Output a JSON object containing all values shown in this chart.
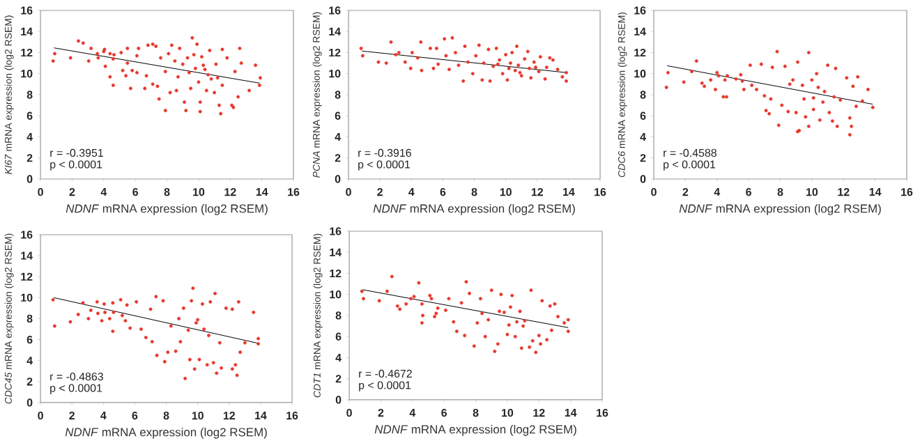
{
  "chart_data": [
    {
      "type": "scatter",
      "xlabel": "*NDNF* mRNA expression (log2 RSEM)",
      "ylabel": "*KI67* mRNA expression (log2 RSEM)",
      "xlim": [
        0,
        16
      ],
      "ylim": [
        0,
        16
      ],
      "xticks": [
        0,
        2,
        4,
        6,
        8,
        10,
        12,
        14,
        16
      ],
      "yticks": [
        0,
        2,
        4,
        6,
        8,
        10,
        12,
        14,
        16
      ],
      "annotations": [
        "r = -0.3951",
        "p < 0.0001"
      ],
      "series": [
        {
          "color": "#e8392f",
          "marker": "circle",
          "x": [
            0.8,
            0.9,
            1.9,
            2.4,
            2.7,
            3.05,
            3.2,
            3.6,
            3.65,
            4.0,
            4.05,
            4.1,
            4.4,
            4.4,
            4.6,
            4.6,
            4.65,
            5.1,
            5.2,
            5.4,
            5.5,
            5.5,
            5.7,
            5.8,
            6.1,
            6.2,
            6.1,
            6.6,
            6.7,
            6.8,
            7.1,
            7.1,
            7.3,
            7.4,
            7.5,
            7.6,
            7.9,
            7.9,
            8.1,
            8.2,
            8.3,
            8.5,
            8.6,
            8.8,
            9.0,
            9.1,
            9.2,
            9.3,
            9.5,
            9.6,
            9.7,
            9.8,
            9.9,
            10.0,
            10.1,
            10.1,
            10.2,
            10.4,
            10.5,
            10.7,
            10.8,
            11.0,
            11.1,
            11.3,
            11.4,
            11.5,
            11.5,
            11.8,
            12.1,
            12.2,
            12.3,
            12.5,
            12.6,
            12.7,
            13.2,
            13.6,
            13.85,
            13.9,
            10.3,
            10.6,
            11.2,
            9.4,
            8.7
          ],
          "values": [
            11.2,
            11.9,
            11.5,
            13.1,
            12.9,
            11.2,
            12.4,
            11.9,
            11.5,
            12.1,
            12.3,
            10.7,
            9.7,
            11.9,
            11.4,
            8.9,
            11.8,
            12.0,
            10.3,
            9.8,
            12.4,
            11.0,
            8.6,
            10.3,
            11.7,
            12.4,
            10.1,
            8.6,
            9.8,
            12.7,
            12.8,
            9.0,
            12.6,
            8.8,
            7.6,
            11.5,
            6.5,
            10.2,
            11.9,
            8.2,
            12.7,
            11.2,
            8.4,
            12.4,
            10.9,
            7.3,
            6.5,
            11.5,
            8.6,
            13.4,
            11.8,
            10.5,
            12.8,
            9.2,
            6.4,
            7.3,
            11.6,
            10.4,
            8.4,
            12.2,
            9.5,
            8.2,
            10.9,
            7.0,
            6.2,
            12.3,
            8.9,
            11.5,
            7.0,
            6.8,
            10.2,
            7.8,
            12.4,
            11.0,
            8.4,
            10.8,
            8.9,
            9.6,
            10.8,
            9.9,
            9.6,
            10.1,
            9.7
          ]
        },
        {
          "type": "line",
          "color": "#000000",
          "marker": "none",
          "x": [
            0.85,
            13.85
          ],
          "values": [
            12.45,
            9.1
          ]
        }
      ]
    },
    {
      "type": "scatter",
      "xlabel": "*NDNF* mRNA expression (log2 RSEM)",
      "ylabel": "*PCNA* mRNA expression (log2 RSEM)",
      "xlim": [
        0,
        16
      ],
      "ylim": [
        0,
        16
      ],
      "xticks": [
        0,
        2,
        4,
        6,
        8,
        10,
        12,
        14,
        16
      ],
      "yticks": [
        0,
        2,
        4,
        6,
        8,
        10,
        12,
        14,
        16
      ],
      "annotations": [
        "r = -0.3916",
        "p < 0.0001"
      ],
      "series": [
        {
          "color": "#e8392f",
          "marker": "circle",
          "x": [
            0.8,
            0.9,
            1.9,
            2.4,
            2.7,
            3.0,
            3.2,
            3.6,
            3.95,
            4.05,
            4.4,
            4.6,
            4.65,
            5.2,
            5.4,
            5.6,
            5.7,
            6.1,
            6.2,
            6.4,
            6.6,
            6.8,
            7.0,
            7.3,
            7.4,
            7.6,
            7.9,
            8.1,
            8.3,
            8.5,
            8.9,
            9.0,
            9.2,
            9.4,
            9.6,
            9.8,
            10.0,
            10.1,
            10.3,
            10.4,
            10.6,
            10.7,
            10.8,
            11.0,
            11.2,
            11.4,
            11.5,
            11.6,
            11.8,
            12.1,
            12.2,
            12.5,
            12.6,
            12.8,
            13.0,
            13.3,
            13.6,
            13.85,
            13.85,
            9.5,
            10.2,
            10.9,
            11.9,
            8.6
          ],
          "values": [
            12.4,
            11.7,
            11.1,
            11.0,
            13.0,
            11.8,
            12.0,
            11.1,
            10.5,
            12.0,
            11.5,
            13.0,
            10.3,
            12.4,
            10.5,
            12.4,
            10.9,
            13.3,
            11.7,
            10.4,
            13.4,
            12.0,
            10.8,
            9.3,
            12.6,
            11.1,
            10.0,
            11.7,
            12.7,
            9.4,
            12.3,
            9.3,
            10.7,
            12.4,
            11.3,
            10.0,
            11.8,
            9.4,
            11.0,
            12.0,
            10.3,
            12.6,
            10.8,
            9.8,
            11.4,
            12.1,
            10.5,
            9.6,
            11.1,
            10.2,
            11.6,
            9.5,
            10.6,
            11.5,
            11.3,
            10.4,
            9.7,
            10.1,
            9.3,
            10.9,
            10.5,
            10.1,
            10.6,
            11.0
          ]
        },
        {
          "type": "line",
          "color": "#000000",
          "marker": "none",
          "x": [
            0.85,
            13.85
          ],
          "values": [
            12.15,
            10.1
          ]
        }
      ]
    },
    {
      "type": "scatter",
      "xlabel": "*NDNF* mRNA expression (log2 RSEM)",
      "ylabel": "*CDC6* mRNA expression (log2 RSEM)",
      "xlim": [
        0,
        16
      ],
      "ylim": [
        0,
        16
      ],
      "xticks": [
        0,
        2,
        4,
        6,
        8,
        10,
        12,
        14,
        16
      ],
      "yticks": [
        0,
        2,
        4,
        6,
        8,
        10,
        12,
        14,
        16
      ],
      "annotations": [
        "r = -0.4588",
        "p < 0.0001"
      ],
      "series": [
        {
          "color": "#e8392f",
          "marker": "circle",
          "x": [
            0.8,
            0.9,
            1.9,
            2.4,
            2.7,
            3.05,
            3.2,
            3.6,
            3.9,
            4.0,
            4.1,
            4.4,
            4.5,
            4.6,
            4.65,
            5.2,
            5.5,
            5.6,
            5.7,
            6.1,
            6.2,
            6.5,
            6.8,
            7.0,
            7.1,
            7.3,
            7.4,
            7.5,
            7.8,
            7.9,
            8.1,
            8.3,
            8.5,
            8.8,
            9.0,
            9.1,
            9.1,
            9.2,
            9.5,
            9.6,
            9.8,
            9.8,
            10.0,
            10.1,
            10.3,
            10.5,
            10.7,
            11.0,
            11.1,
            11.3,
            11.5,
            11.6,
            11.8,
            12.2,
            12.4,
            12.4,
            12.5,
            12.6,
            12.8,
            12.9,
            13.2,
            13.55,
            13.85,
            10.4,
            9.4,
            10.8,
            11.4,
            8.6,
            10.1
          ],
          "values": [
            8.7,
            10.1,
            9.2,
            10.2,
            11.2,
            9.1,
            8.8,
            9.4,
            8.5,
            10.1,
            9.8,
            7.8,
            9.4,
            7.8,
            9.8,
            9.5,
            9.9,
            9.3,
            8.5,
            10.8,
            8.9,
            8.5,
            10.9,
            7.9,
            6.5,
            6.2,
            7.6,
            10.6,
            12.1,
            5.1,
            7.0,
            10.7,
            6.4,
            9.4,
            6.3,
            4.5,
            11.1,
            4.6,
            7.6,
            5.9,
            12.0,
            5.0,
            9.4,
            6.6,
            10.0,
            5.6,
            7.3,
            10.8,
            6.3,
            5.5,
            10.5,
            5.0,
            7.5,
            9.6,
            5.8,
            4.2,
            5.0,
            8.8,
            6.9,
            9.7,
            7.4,
            8.5,
            6.8,
            8.7,
            8.9,
            8.3,
            7.8,
            9.0,
            7.7
          ]
        },
        {
          "type": "line",
          "color": "#000000",
          "marker": "none",
          "x": [
            0.85,
            13.85
          ],
          "values": [
            10.75,
            7.1
          ]
        }
      ]
    },
    {
      "type": "scatter",
      "xlabel": "*NDNF* mRNA expression (log2 RSEM)",
      "ylabel": "*CDC45* mRNA expression (log2 RSEM)",
      "xlim": [
        0,
        16
      ],
      "ylim": [
        0,
        16
      ],
      "xticks": [
        0,
        2,
        4,
        6,
        8,
        10,
        12,
        14,
        16
      ],
      "yticks": [
        0,
        2,
        4,
        6,
        8,
        10,
        12,
        14,
        16
      ],
      "annotations": [
        "r = -0.4863",
        "p < 0.0001"
      ],
      "series": [
        {
          "color": "#e8392f",
          "marker": "circle",
          "x": [
            0.8,
            0.9,
            1.9,
            2.4,
            2.7,
            3.05,
            3.2,
            3.6,
            3.65,
            3.9,
            4.05,
            4.1,
            4.4,
            4.6,
            4.6,
            4.65,
            5.1,
            5.2,
            5.4,
            5.5,
            5.7,
            6.1,
            6.4,
            6.7,
            7.0,
            7.1,
            7.35,
            7.4,
            7.8,
            7.9,
            8.1,
            8.3,
            8.6,
            8.9,
            9.1,
            9.2,
            9.5,
            9.6,
            9.7,
            9.8,
            10.0,
            10.1,
            10.3,
            10.6,
            10.8,
            11.0,
            11.1,
            11.2,
            11.5,
            11.8,
            12.2,
            12.2,
            12.4,
            12.5,
            12.6,
            12.7,
            13.0,
            13.55,
            13.85,
            13.85,
            10.4,
            9.9,
            10.7,
            11.4,
            8.8,
            9.4
          ],
          "values": [
            9.8,
            7.3,
            7.7,
            8.4,
            9.5,
            8.0,
            8.8,
            9.6,
            8.5,
            7.8,
            9.4,
            8.6,
            8.0,
            9.5,
            6.8,
            8.6,
            9.8,
            8.3,
            7.8,
            9.3,
            7.1,
            9.6,
            7.0,
            6.2,
            8.9,
            5.8,
            10.1,
            4.5,
            9.7,
            3.9,
            4.8,
            7.3,
            4.9,
            5.8,
            9.0,
            2.3,
            4.1,
            9.7,
            10.9,
            3.2,
            7.9,
            4.1,
            9.4,
            3.6,
            9.6,
            3.8,
            10.4,
            2.8,
            3.3,
            9.0,
            8.9,
            3.2,
            3.6,
            2.6,
            9.6,
            4.8,
            5.7,
            8.6,
            6.1,
            5.6,
            7.0,
            7.6,
            6.4,
            5.7,
            8.0,
            6.9
          ]
        },
        {
          "type": "line",
          "color": "#000000",
          "marker": "none",
          "x": [
            0.85,
            13.85
          ],
          "values": [
            10.0,
            5.65
          ]
        }
      ]
    },
    {
      "type": "scatter",
      "xlabel": "*NDNF* mRNA expression (log2 RSEM)",
      "ylabel": "*CDT1* mRNA expression (log2 RSEM)",
      "xlim": [
        0,
        16
      ],
      "ylim": [
        0,
        16
      ],
      "xticks": [
        0,
        2,
        4,
        6,
        8,
        10,
        12,
        14,
        16
      ],
      "yticks": [
        0,
        2,
        4,
        6,
        8,
        10,
        12,
        14,
        16
      ],
      "annotations": [
        "r = -0.4672",
        "p < 0.0001"
      ],
      "series": [
        {
          "color": "#e8392f",
          "marker": "circle",
          "x": [
            0.8,
            0.9,
            1.9,
            2.4,
            2.7,
            3.05,
            3.2,
            3.6,
            3.9,
            4.1,
            4.4,
            4.6,
            4.6,
            4.65,
            5.1,
            5.2,
            5.4,
            5.5,
            5.6,
            6.1,
            6.3,
            6.6,
            6.8,
            7.1,
            7.3,
            7.4,
            7.6,
            7.9,
            8.1,
            8.3,
            8.6,
            8.8,
            9.0,
            9.2,
            9.4,
            9.6,
            9.8,
            10.0,
            10.1,
            10.3,
            10.5,
            10.8,
            10.9,
            11.1,
            11.4,
            11.5,
            11.6,
            11.8,
            12.0,
            12.1,
            12.2,
            12.5,
            12.7,
            12.8,
            13.0,
            13.2,
            13.6,
            13.85,
            13.85,
            10.6,
            9.5,
            11.0,
            10.2,
            8.4
          ],
          "values": [
            10.3,
            9.6,
            9.4,
            10.3,
            11.7,
            8.9,
            8.6,
            9.1,
            9.6,
            9.8,
            11.1,
            9.1,
            7.3,
            8.0,
            9.9,
            9.6,
            7.9,
            8.2,
            8.7,
            8.5,
            9.6,
            7.4,
            6.5,
            9.2,
            6.1,
            11.2,
            10.1,
            5.1,
            7.3,
            9.6,
            6.0,
            7.6,
            10.4,
            4.6,
            5.3,
            10.0,
            8.3,
            6.2,
            7.1,
            9.9,
            6.0,
            8.4,
            4.9,
            7.5,
            5.0,
            10.4,
            5.6,
            4.5,
            6.1,
            5.3,
            9.4,
            5.7,
            8.9,
            6.6,
            9.1,
            7.9,
            7.3,
            7.6,
            6.5,
            7.4,
            8.4,
            7.0,
            8.8,
            8.2
          ]
        },
        {
          "type": "line",
          "color": "#000000",
          "marker": "none",
          "x": [
            0.85,
            13.85
          ],
          "values": [
            10.45,
            6.85
          ]
        }
      ]
    }
  ]
}
